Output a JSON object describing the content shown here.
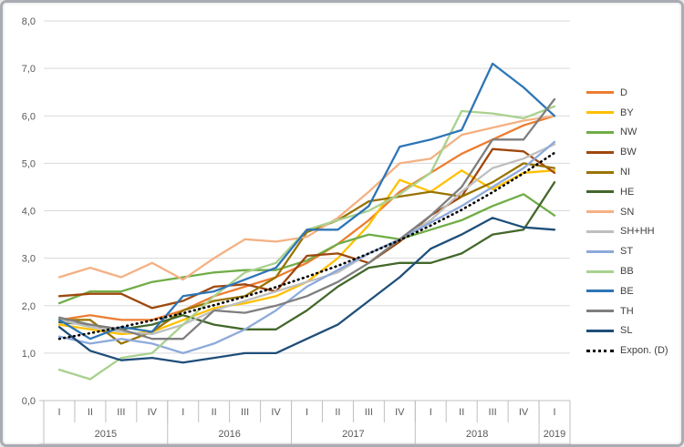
{
  "chart_data": {
    "type": "line",
    "title": "",
    "decimal_style": "comma",
    "grid": "horizontal",
    "legend_position": "right",
    "y_axis": {
      "min": 0,
      "max": 8,
      "step": 1,
      "tick_labels": [
        "0,0",
        "1,0",
        "2,0",
        "3,0",
        "4,0",
        "5,0",
        "6,0",
        "7,0",
        "8,0"
      ]
    },
    "x_axis": {
      "quarter_labels": [
        "I",
        "II",
        "III",
        "IV",
        "I",
        "II",
        "III",
        "IV",
        "I",
        "II",
        "III",
        "IV",
        "I",
        "II",
        "III",
        "IV",
        "I"
      ],
      "year_groups": [
        {
          "label": "2015",
          "span": 4
        },
        {
          "label": "2016",
          "span": 4
        },
        {
          "label": "2017",
          "span": 4
        },
        {
          "label": "2018",
          "span": 4
        },
        {
          "label": "2019",
          "span": 1
        }
      ]
    },
    "categories": [
      "2015-I",
      "2015-II",
      "2015-III",
      "2015-IV",
      "2016-I",
      "2016-II",
      "2016-III",
      "2016-IV",
      "2017-I",
      "2017-II",
      "2017-III",
      "2017-IV",
      "2018-I",
      "2018-II",
      "2018-III",
      "2018-IV",
      "2019-I"
    ],
    "series": [
      {
        "name": "D",
        "color": "#ED7D31",
        "style": "solid",
        "values": [
          1.7,
          1.8,
          1.7,
          1.7,
          1.9,
          2.2,
          2.4,
          2.6,
          2.9,
          3.3,
          3.8,
          4.4,
          4.8,
          5.2,
          5.5,
          5.8,
          6.0
        ]
      },
      {
        "name": "BY",
        "color": "#FFC000",
        "style": "solid",
        "values": [
          1.6,
          1.5,
          1.4,
          1.45,
          1.7,
          1.95,
          2.05,
          2.2,
          2.5,
          3.0,
          3.7,
          4.65,
          4.4,
          4.85,
          4.45,
          4.8,
          4.85
        ]
      },
      {
        "name": "NW",
        "color": "#70AD47",
        "style": "solid",
        "values": [
          2.05,
          2.3,
          2.3,
          2.5,
          2.6,
          2.7,
          2.75,
          2.75,
          2.95,
          3.3,
          3.5,
          3.4,
          3.6,
          3.8,
          4.1,
          4.35,
          3.9
        ]
      },
      {
        "name": "BW",
        "color": "#9E480E",
        "style": "solid",
        "values": [
          2.2,
          2.25,
          2.25,
          1.95,
          2.1,
          2.4,
          2.45,
          2.3,
          3.05,
          3.1,
          2.9,
          3.35,
          3.9,
          4.3,
          5.3,
          5.25,
          4.8
        ]
      },
      {
        "name": "NI",
        "color": "#997300",
        "style": "solid",
        "values": [
          1.7,
          1.7,
          1.2,
          1.45,
          1.9,
          2.1,
          2.2,
          2.6,
          3.55,
          3.8,
          4.2,
          4.3,
          4.4,
          4.3,
          4.6,
          5.0,
          4.9
        ]
      },
      {
        "name": "HE",
        "color": "#43682B",
        "style": "solid",
        "values": [
          1.65,
          1.6,
          1.5,
          1.6,
          1.8,
          1.6,
          1.5,
          1.5,
          1.9,
          2.4,
          2.8,
          2.9,
          2.9,
          3.1,
          3.5,
          3.6,
          4.6
        ]
      },
      {
        "name": "SN",
        "color": "#F4B183",
        "style": "solid",
        "values": [
          2.6,
          2.8,
          2.6,
          2.9,
          2.55,
          3.0,
          3.4,
          3.35,
          3.45,
          3.85,
          4.4,
          5.0,
          5.1,
          5.6,
          5.75,
          5.9,
          6.0
        ]
      },
      {
        "name": "SH+HH",
        "color": "#BFBFBF",
        "style": "solid",
        "values": [
          1.7,
          1.55,
          1.45,
          1.4,
          1.6,
          1.9,
          2.1,
          2.3,
          2.5,
          2.7,
          3.1,
          3.4,
          3.8,
          4.4,
          4.9,
          5.1,
          5.4
        ]
      },
      {
        "name": "ST",
        "color": "#8EAADB",
        "style": "solid",
        "values": [
          1.35,
          1.2,
          1.3,
          1.2,
          1.0,
          1.2,
          1.5,
          1.9,
          2.4,
          2.75,
          3.1,
          3.4,
          3.75,
          4.1,
          4.5,
          4.9,
          5.45
        ]
      },
      {
        "name": "BB",
        "color": "#A9D18E",
        "style": "solid",
        "values": [
          0.65,
          0.45,
          0.9,
          1.0,
          1.6,
          2.2,
          2.7,
          2.9,
          3.6,
          3.8,
          4.0,
          4.35,
          4.8,
          6.1,
          6.05,
          5.95,
          6.2
        ]
      },
      {
        "name": "BE",
        "color": "#2E75B6",
        "style": "solid",
        "values": [
          1.7,
          1.3,
          1.55,
          1.45,
          2.2,
          2.3,
          2.55,
          2.8,
          3.6,
          3.6,
          4.1,
          5.35,
          5.5,
          5.7,
          7.1,
          6.6,
          6.0
        ]
      },
      {
        "name": "TH",
        "color": "#7F7F7F",
        "style": "solid",
        "values": [
          1.75,
          1.6,
          1.5,
          1.3,
          1.3,
          1.9,
          1.85,
          2.0,
          2.2,
          2.5,
          2.9,
          3.4,
          3.9,
          4.5,
          5.5,
          5.5,
          6.35
        ]
      },
      {
        "name": "SL",
        "color": "#1F4E79",
        "style": "solid",
        "values": [
          1.55,
          1.05,
          0.85,
          0.9,
          0.8,
          0.9,
          1.0,
          1.0,
          1.3,
          1.6,
          2.1,
          2.6,
          3.2,
          3.5,
          3.85,
          3.65,
          3.6
        ]
      },
      {
        "name": "Expon. (D)",
        "color": "#000000",
        "style": "dotted",
        "values": [
          1.3,
          1.42,
          1.55,
          1.69,
          1.84,
          2.01,
          2.19,
          2.39,
          2.61,
          2.84,
          3.1,
          3.38,
          3.69,
          4.02,
          4.39,
          4.79,
          5.22
        ]
      }
    ],
    "colors": {
      "gridline": "#D9D9D9",
      "axis_line": "#BFBFBF",
      "tick_label": "#595959",
      "legend_label": "#404040"
    }
  }
}
